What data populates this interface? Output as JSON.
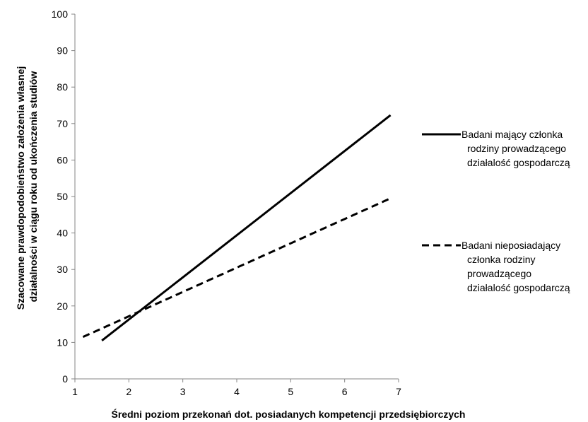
{
  "chart_data": {
    "type": "line",
    "title": "",
    "xlabel": "Średni poziom przekonań dot. posiadanych kompetencji przedsiębiorczych",
    "ylabel_lines": [
      "Szacowane prawdopodobieństwo założenia własnej",
      "działalności w ciągu roku od ukończenia studiów"
    ],
    "xlim": [
      1,
      7
    ],
    "ylim": [
      0,
      100
    ],
    "x_ticks": [
      1,
      2,
      3,
      4,
      5,
      6,
      7
    ],
    "y_ticks": [
      0,
      10,
      20,
      30,
      40,
      50,
      60,
      70,
      80,
      90,
      100
    ],
    "grid": false,
    "legend_position": "right",
    "series": [
      {
        "name_lines": [
          "Badani mający członka",
          "rodziny prowadzącego",
          "działalość gospodarczą"
        ],
        "style": "solid",
        "color": "#000000",
        "points": [
          [
            1.5,
            10.5
          ],
          [
            6.85,
            72.3
          ]
        ]
      },
      {
        "name_lines": [
          "Badani nieposiadający",
          "członka rodziny",
          "prowadzącego",
          "działalość gospodarczą"
        ],
        "style": "dashed",
        "color": "#000000",
        "points": [
          [
            1.15,
            11.5
          ],
          [
            6.85,
            49.5
          ]
        ]
      }
    ]
  }
}
